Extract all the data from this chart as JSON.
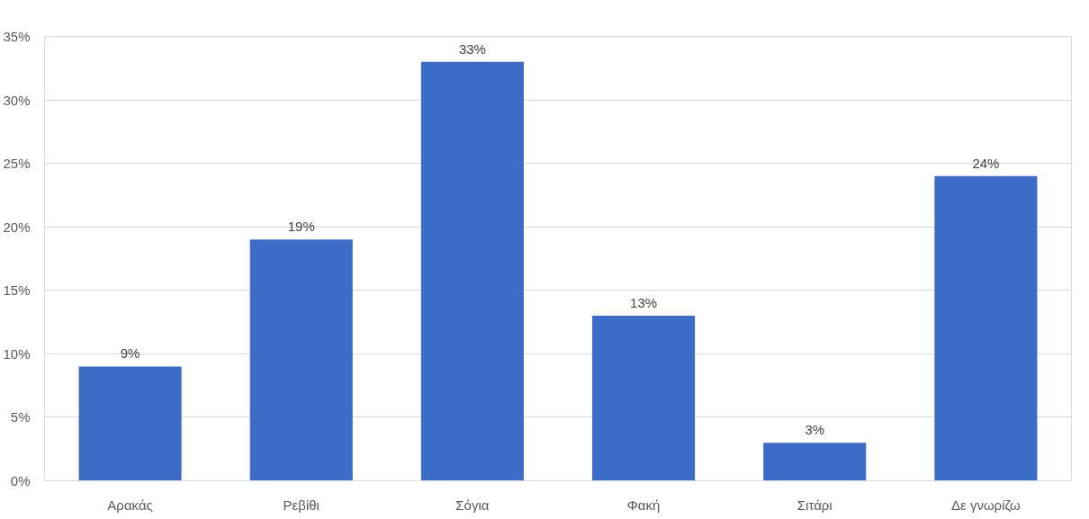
{
  "chart_data": {
    "type": "bar",
    "categories": [
      "Αρακάς",
      "Ρεβίθι",
      "Σόγια",
      "Φακή",
      "Σιτάρι",
      "Δε γνωρίζω"
    ],
    "values": [
      9,
      19,
      33,
      13,
      3,
      24
    ],
    "value_labels": [
      "9%",
      "19%",
      "33%",
      "13%",
      "3%",
      "24%"
    ],
    "color": "#3c6cc8",
    "ylim": [
      0,
      35
    ],
    "yticks": [
      {
        "value": 0,
        "label": "0%"
      },
      {
        "value": 5,
        "label": "5%"
      },
      {
        "value": 10,
        "label": "10%"
      },
      {
        "value": 15,
        "label": "15%"
      },
      {
        "value": 20,
        "label": "20%"
      },
      {
        "value": 25,
        "label": "25%"
      },
      {
        "value": 30,
        "label": "30%"
      },
      {
        "value": 35,
        "label": "35%"
      }
    ],
    "grid": "y"
  }
}
